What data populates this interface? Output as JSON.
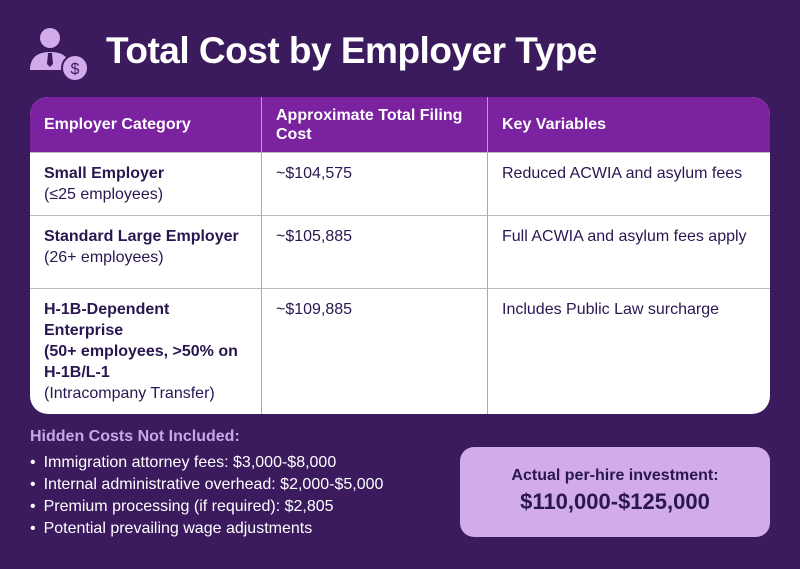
{
  "title": "Total Cost by Employer Type",
  "colors": {
    "background": "#3b1a5e",
    "header": "#7b22a0",
    "accent": "#d2abeb"
  },
  "table": {
    "headers": [
      "Employer Category",
      "Approximate Total Filing Cost",
      "Key Variables"
    ],
    "rows": [
      {
        "category": "Small Employer",
        "sub": "(≤25 employees)",
        "note": "",
        "cost": "~$104,575",
        "variables": "Reduced ACWIA and asylum fees"
      },
      {
        "category": "Standard Large Employer",
        "sub": "(26+ employees)",
        "note": "",
        "cost": "~$105,885",
        "variables": "Full ACWIA and asylum fees apply"
      },
      {
        "category": "H-1B-Dependent Enterprise",
        "sub": "(50+ employees, >50% on H-1B/L-1",
        "note": "(Intracompany Transfer)",
        "cost": "~$109,885",
        "variables": "Includes Public Law surcharge"
      }
    ]
  },
  "hidden": {
    "heading": "Hidden Costs Not Included:",
    "items": [
      "Immigration attorney fees: $3,000-$8,000",
      "Internal administrative overhead: $2,000-$5,000",
      "Premium processing (if required): $2,805",
      "Potential prevailing wage adjustments"
    ]
  },
  "summary": {
    "label": "Actual per-hire investment:",
    "value": "$110,000-$125,000"
  }
}
